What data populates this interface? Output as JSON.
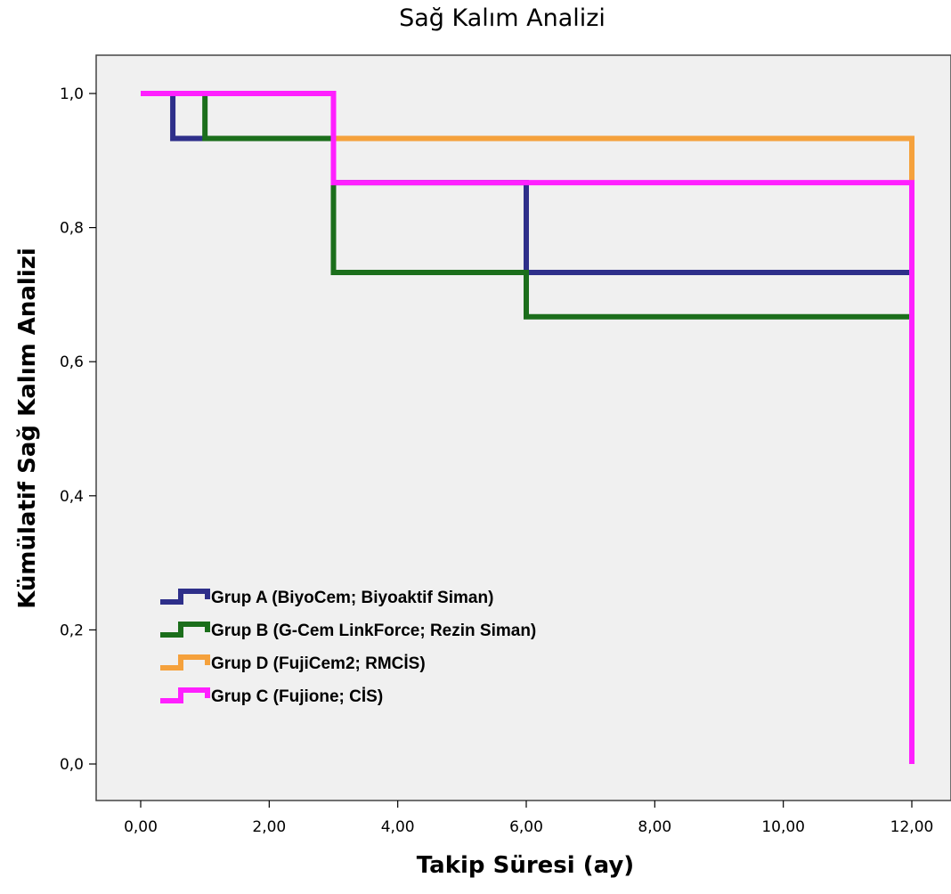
{
  "chart_data": {
    "type": "line",
    "title": "Sağ Kalım Analizi",
    "xlabel": "Takip Süresi (ay)",
    "ylabel": "Kümülatif Sağ Kalım Analizi",
    "xlim": [
      -1.0,
      13.0
    ],
    "ylim": [
      -0.07,
      1.06
    ],
    "x_ticks": [
      0,
      2,
      4,
      6,
      8,
      10,
      12
    ],
    "x_tick_labels": [
      "0,00",
      "2,00",
      "4,00",
      "6,00",
      "8,00",
      "10,00",
      "12,00"
    ],
    "y_ticks": [
      0,
      0.2,
      0.4,
      0.6,
      0.8,
      1.0
    ],
    "y_tick_labels": [
      "0,0",
      "0,2",
      "0,4",
      "0,6",
      "0,8",
      "1,0"
    ],
    "grid": false,
    "legend_position": "lower-left",
    "background": "#f0f0f0",
    "step_function": true,
    "series": [
      {
        "name": "Grup A (BiyoCem; Biyoaktif Siman)",
        "color": "#2e2f8a",
        "x": [
          0,
          0.5,
          3,
          6,
          12
        ],
        "y": [
          1.0,
          0.933,
          0.867,
          0.733,
          0.733
        ]
      },
      {
        "name": "Grup B (G-Cem LinkForce; Rezin Siman)",
        "color": "#1b6e1b",
        "x": [
          0,
          1,
          3,
          6,
          12
        ],
        "y": [
          1.0,
          0.933,
          0.733,
          0.667,
          0.667
        ]
      },
      {
        "name": "Grup D (FujiCem2; RMCİS)",
        "color": "#f5a13c",
        "x": [
          0,
          3,
          12,
          12
        ],
        "y": [
          1.0,
          0.933,
          0.933,
          0.867
        ]
      },
      {
        "name": "Grup C (Fujione; CİS)",
        "color": "#ff20ff",
        "x": [
          0,
          3,
          12,
          12
        ],
        "y": [
          1.0,
          0.867,
          0.867,
          0.0
        ]
      }
    ]
  }
}
